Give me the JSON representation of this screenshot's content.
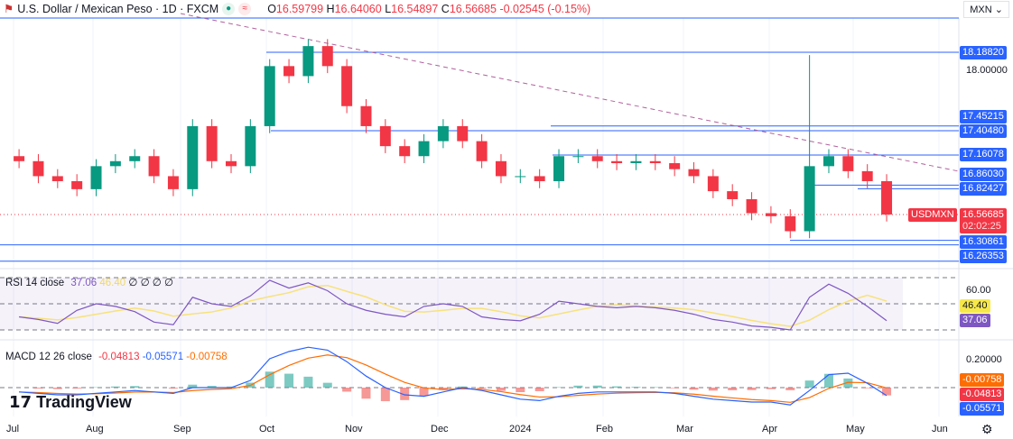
{
  "header": {
    "flag_icon": "us-mx-flag-icon",
    "title": "U.S. Dollar / Mexican Peso · 1D · FXCM",
    "o_label": "O",
    "o": "16.59799",
    "h_label": "H",
    "h": "16.64060",
    "l_label": "L",
    "l": "16.54897",
    "c_label": "C",
    "c": "16.56685",
    "change": "-0.02545 (-0.15%)",
    "currency": "MXN"
  },
  "colors": {
    "up": "#089981",
    "down": "#f23645",
    "level": "#2962ff",
    "trend": "#b0619b",
    "rsi": "#7e57c2",
    "rsi_ma": "#f7e27a",
    "macd": "#2962ff",
    "signal": "#ff6d00"
  },
  "price_axis": {
    "tick": "18.00000",
    "levels": [
      "18.18820",
      "17.45215",
      "17.40480",
      "17.16078",
      "16.86030",
      "16.82427",
      "16.30861",
      "16.26353"
    ],
    "symbol": "USDMXN",
    "last": "16.56685",
    "countdown": "02:02:25"
  },
  "time_axis": [
    "Jul",
    "Aug",
    "Sep",
    "Oct",
    "Nov",
    "Dec",
    "2024",
    "Feb",
    "Mar",
    "Apr",
    "May",
    "Jun"
  ],
  "rsi": {
    "label": "RSI 14 close",
    "value": "37.06",
    "ma": "46.40",
    "extra": "∅ ∅ ∅ ∅",
    "tick": "60.00"
  },
  "macd": {
    "label": "MACD 12 26 close",
    "hist": "-0.04813",
    "macd": "-0.05571",
    "signal": "-0.00758",
    "tick": "0.20000"
  },
  "logo": "TradingView",
  "chart_data": {
    "type": "candlestick",
    "title": "U.S. Dollar / Mexican Peso · 1D · FXCM",
    "ylim": [
      16.05,
      18.6
    ],
    "dates": [
      "2023-07-03",
      "2023-07-10",
      "2023-07-17",
      "2023-07-24",
      "2023-07-31",
      "2023-08-07",
      "2023-08-14",
      "2023-08-21",
      "2023-08-28",
      "2023-09-04",
      "2023-09-11",
      "2023-09-18",
      "2023-09-25",
      "2023-10-02",
      "2023-10-09",
      "2023-10-16",
      "2023-10-23",
      "2023-10-30",
      "2023-11-06",
      "2023-11-13",
      "2023-11-20",
      "2023-11-27",
      "2023-12-04",
      "2023-12-11",
      "2023-12-18",
      "2023-12-25",
      "2024-01-01",
      "2024-01-08",
      "2024-01-15",
      "2024-01-22",
      "2024-01-29",
      "2024-02-05",
      "2024-02-12",
      "2024-02-19",
      "2024-02-26",
      "2024-03-04",
      "2024-03-11",
      "2024-03-18",
      "2024-03-25",
      "2024-04-01",
      "2024-04-08",
      "2024-04-15",
      "2024-04-22",
      "2024-04-29",
      "2024-05-06",
      "2024-05-13"
    ],
    "close": [
      17.1,
      16.95,
      16.9,
      16.82,
      17.05,
      17.1,
      17.15,
      16.95,
      16.82,
      17.45,
      17.1,
      17.05,
      17.45,
      18.05,
      17.95,
      18.25,
      18.05,
      17.65,
      17.45,
      17.25,
      17.15,
      17.3,
      17.45,
      17.3,
      17.1,
      16.95,
      16.95,
      16.9,
      17.15,
      17.15,
      17.1,
      17.08,
      17.1,
      17.08,
      17.02,
      16.95,
      16.8,
      16.72,
      16.58,
      16.55,
      16.4,
      17.05,
      17.15,
      17.0,
      16.9,
      16.56685
    ],
    "spike_high": {
      "date": "2024-04-15",
      "value": 18.16
    },
    "levels": [
      18.53,
      18.1882,
      17.45215,
      17.4048,
      17.16078,
      16.8603,
      16.82427,
      16.30861,
      16.26353,
      16.1
    ],
    "rsi": [
      40,
      38,
      35,
      45,
      50,
      48,
      44,
      36,
      34,
      55,
      50,
      48,
      56,
      68,
      62,
      66,
      60,
      50,
      45,
      42,
      40,
      48,
      50,
      48,
      40,
      38,
      37,
      42,
      52,
      50,
      48,
      47,
      48,
      47,
      45,
      42,
      38,
      36,
      33,
      32,
      30,
      55,
      65,
      58,
      48,
      37.06
    ],
    "macd": [
      -0.03,
      -0.04,
      -0.05,
      -0.05,
      -0.04,
      -0.03,
      -0.02,
      -0.03,
      -0.04,
      0.0,
      0.0,
      0.0,
      0.05,
      0.2,
      0.25,
      0.28,
      0.26,
      0.18,
      0.08,
      0.0,
      -0.05,
      -0.06,
      -0.03,
      0.0,
      -0.02,
      -0.05,
      -0.08,
      -0.09,
      -0.06,
      -0.04,
      -0.03,
      -0.03,
      -0.03,
      -0.03,
      -0.04,
      -0.06,
      -0.08,
      -0.09,
      -0.1,
      -0.1,
      -0.12,
      -0.02,
      0.09,
      0.1,
      0.03,
      -0.05571
    ]
  }
}
